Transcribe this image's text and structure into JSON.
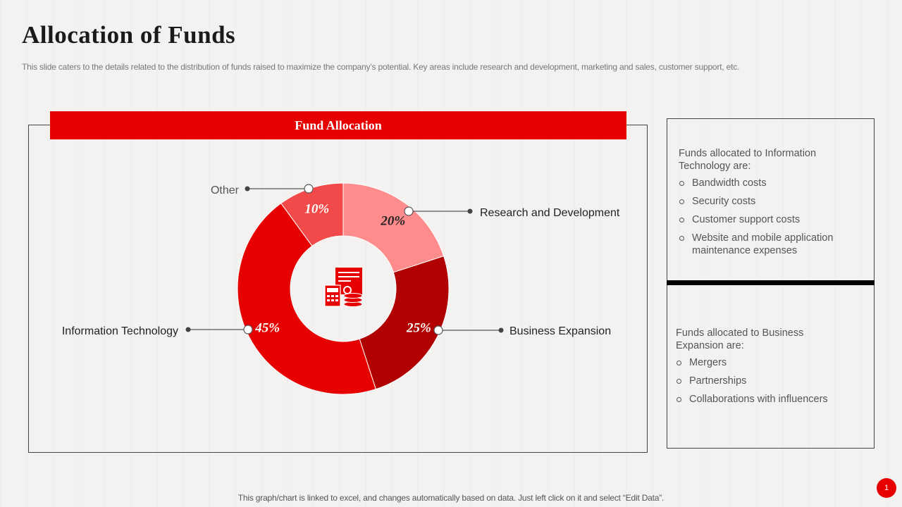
{
  "slide": {
    "title": "Allocation of Funds",
    "subtitle": "This slide caters to the details related to the distribution of funds raised to maximize the company’s potential. Key areas include research and development, marketing and sales, customer support, etc.",
    "footnote": "This graph/chart is linked to excel, and changes automatically based on data. Just left click on it and select “Edit Data”.",
    "page_number": "1"
  },
  "chart_data": {
    "type": "pie",
    "title": "Fund Allocation",
    "donut": true,
    "center_icon": "finance-documents-coins-icon",
    "slices": [
      {
        "label": "Research and Development",
        "value": 20,
        "value_label": "20%",
        "color": "#ff8c8c"
      },
      {
        "label": "Business Expansion",
        "value": 25,
        "value_label": "25%",
        "color": "#b00000"
      },
      {
        "label": "Information Technology",
        "value": 45,
        "value_label": "45%",
        "color": "#e60000"
      },
      {
        "label": "Other",
        "value": 10,
        "value_label": "10%",
        "color": "#f24a4a"
      }
    ]
  },
  "info_panels": {
    "it": {
      "heading": "Funds allocated to Information Technology are:",
      "items": [
        "Bandwidth costs",
        "Security costs",
        "Customer support costs",
        "Website and mobile application maintenance expenses"
      ]
    },
    "business": {
      "heading": "Funds allocated to Business Expansion are:",
      "items": [
        "Mergers",
        "Partnerships",
        "Collaborations with influencers"
      ]
    }
  },
  "colors": {
    "accent": "#e60000",
    "background": "#f4f2f1"
  }
}
